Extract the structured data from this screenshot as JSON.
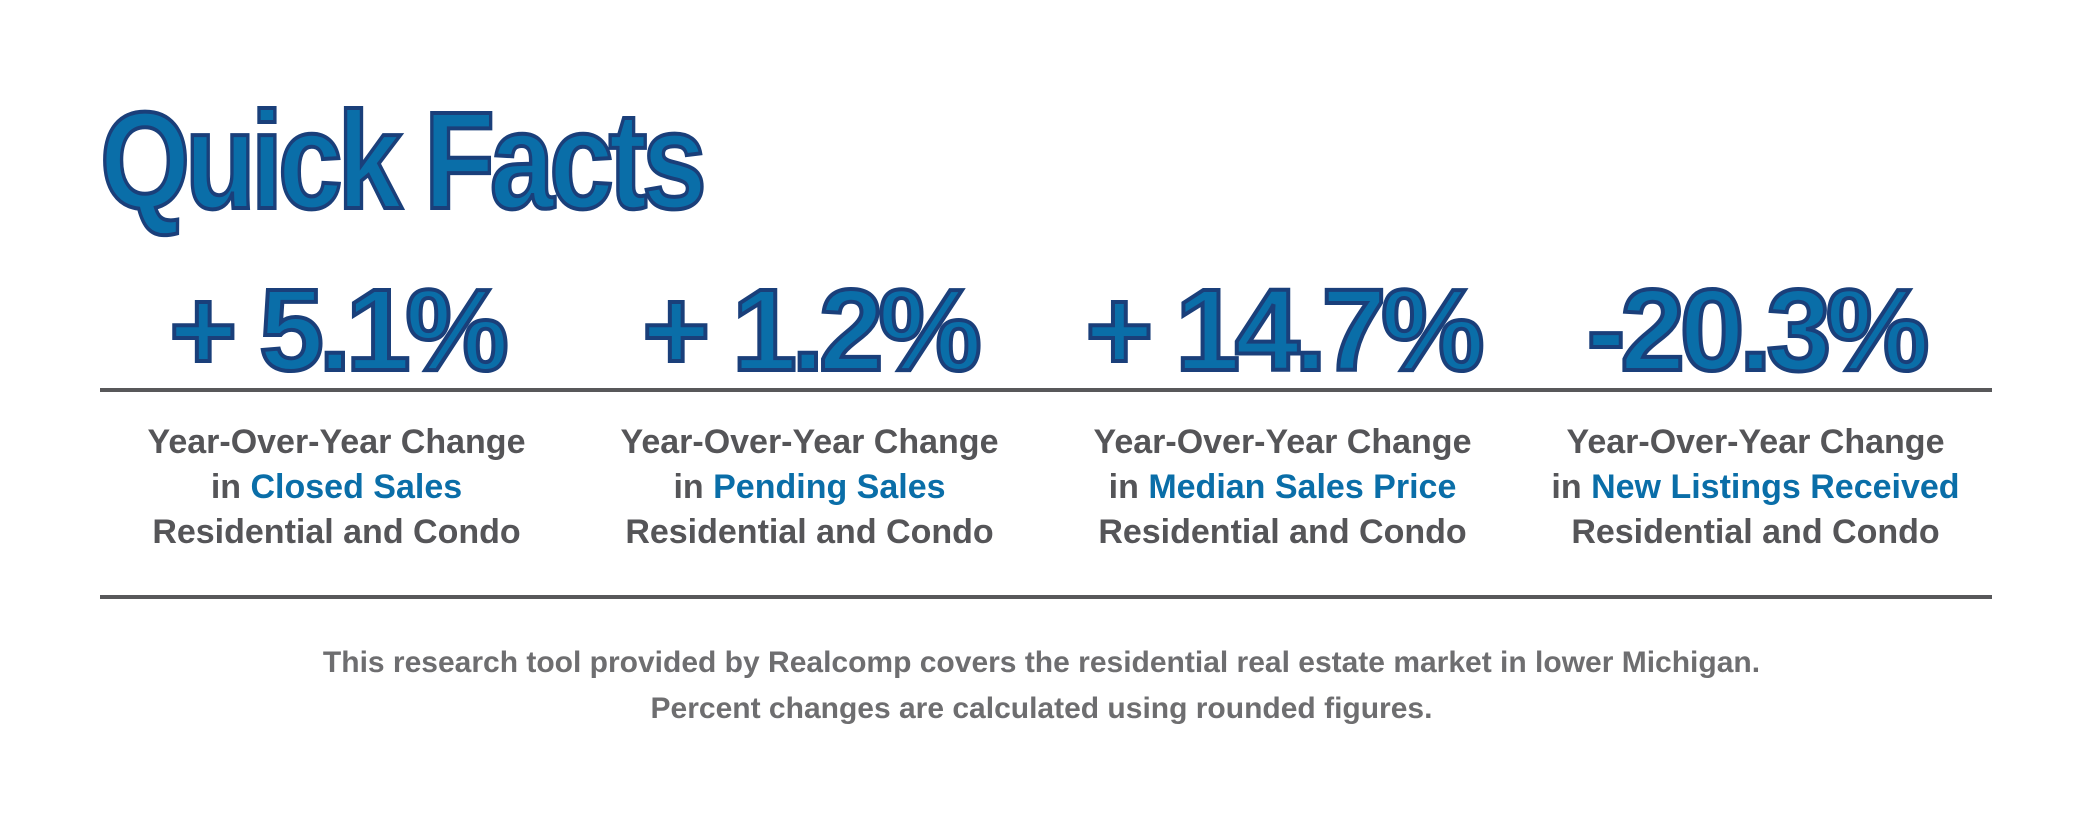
{
  "title": "Quick Facts",
  "stats": [
    {
      "value": "+ 5.1%",
      "line1": "Year-Over-Year Change",
      "prefix": "in",
      "metric": "Closed Sales",
      "line3": "Residential and Condo"
    },
    {
      "value": "+ 1.2%",
      "line1": "Year-Over-Year Change",
      "prefix": "in",
      "metric": "Pending Sales",
      "line3": "Residential and Condo"
    },
    {
      "value": "+ 14.7%",
      "line1": "Year-Over-Year Change",
      "prefix": "in",
      "metric": "Median Sales Price",
      "line3": "Residential and Condo"
    },
    {
      "value": "-20.3%",
      "line1": "Year-Over-Year Change",
      "prefix": "in",
      "metric": "New Listings Received",
      "line3": "Residential and Condo"
    }
  ],
  "footer": {
    "line1": "This research tool provided by Realcomp covers the residential real estate market in lower Michigan.",
    "line2": "Percent changes are calculated using rounded figures."
  },
  "colors": {
    "accent": "#0a6ea8",
    "outline": "#1a3f7a",
    "text": "#555558",
    "footer": "#6e6e70",
    "rule": "#58585a"
  }
}
